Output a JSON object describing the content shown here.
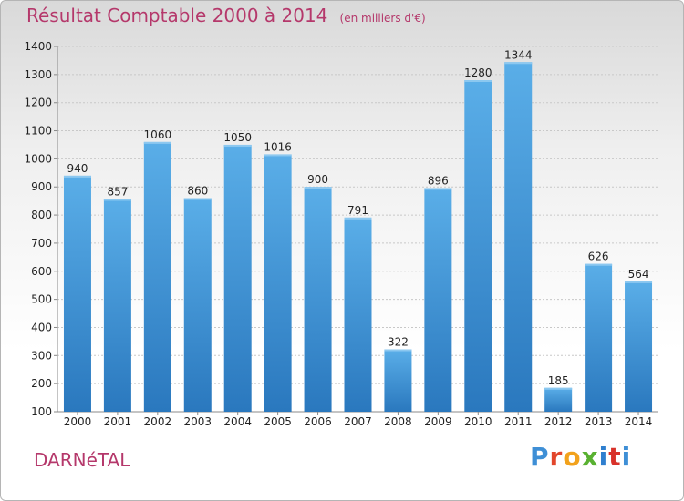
{
  "title": "Résultat Comptable 2000 à 2014",
  "unit_note": "(en milliers d'€)",
  "commune": "DARNéTAL",
  "logo": {
    "letters": [
      "P",
      "r",
      "o",
      "x",
      "i",
      "t",
      "i"
    ]
  },
  "colors": {
    "title": "#b5386b",
    "bar_top": "#5aaee8",
    "bar_bottom": "#2a78be",
    "grid": "#c8c8c8"
  },
  "chart_data": {
    "type": "bar",
    "categories": [
      "2000",
      "2001",
      "2002",
      "2003",
      "2004",
      "2005",
      "2006",
      "2007",
      "2008",
      "2009",
      "2010",
      "2011",
      "2012",
      "2013",
      "2014"
    ],
    "values": [
      940,
      857,
      1060,
      860,
      1050,
      1016,
      900,
      791,
      322,
      896,
      1280,
      1344,
      185,
      626,
      564
    ],
    "value_labels": [
      "940",
      "857",
      "1060",
      "860",
      "1050",
      "1016",
      "900",
      "791",
      "322",
      "896",
      "1280",
      "1344",
      "185",
      "626",
      "564"
    ],
    "y_ticks": [
      "100",
      "200",
      "300",
      "400",
      "500",
      "600",
      "700",
      "800",
      "900",
      "1000",
      "1100",
      "1200",
      "1300",
      "1400"
    ],
    "ylim": [
      100,
      1400
    ],
    "grid": true,
    "title": "Résultat Comptable 2000 à 2014",
    "xlabel": "",
    "ylabel": ""
  }
}
